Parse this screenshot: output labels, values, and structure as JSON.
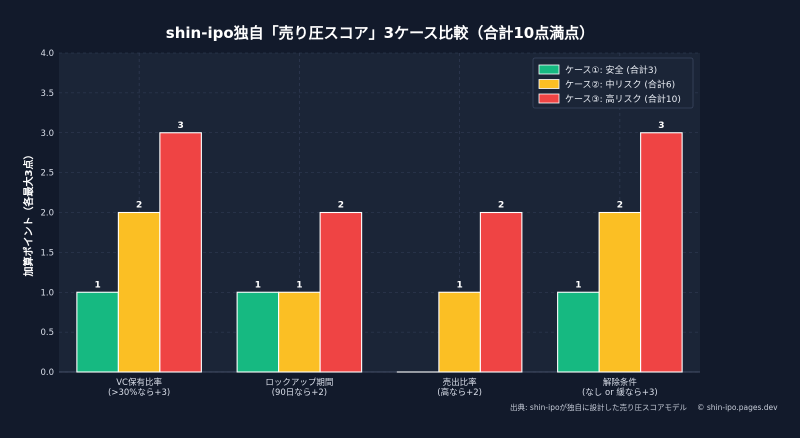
{
  "chart_data": {
    "type": "bar",
    "title": "shin-ipo独自「売り圧スコア」3ケース比較（合計10点満点）",
    "xlabel": "",
    "ylabel": "加算ポイント（各最大3点）",
    "ylim": [
      0,
      4.0
    ],
    "yticks": [
      "0.0",
      "0.5",
      "1.0",
      "1.5",
      "2.0",
      "2.5",
      "3.0",
      "3.5",
      "4.0"
    ],
    "categories": [
      [
        "VC保有比率",
        "(>30%なら+3)"
      ],
      [
        "ロックアップ期間",
        "(90日なら+2)"
      ],
      [
        "売出比率",
        "(高なら+2)"
      ],
      [
        "解除条件",
        "(なし or 緩なら+3)"
      ]
    ],
    "series": [
      {
        "name": "ケース①: 安全 (合計3)",
        "color": "#16b981",
        "values": [
          1,
          1,
          0,
          1
        ]
      },
      {
        "name": "ケース②: 中リスク (合計6)",
        "color": "#fbbf24",
        "values": [
          2,
          1,
          1,
          2
        ]
      },
      {
        "name": "ケース③: 高リスク (合計10)",
        "color": "#ef4444",
        "values": [
          3,
          2,
          2,
          3
        ]
      }
    ],
    "grid": true,
    "legend_position": "top-right",
    "source_note": "出典: shin-ipoが独自に設計した売り圧スコアモデル",
    "watermark": "© shin-ipo.pages.dev"
  },
  "colors": {
    "background": "#121a2b",
    "plot_background": "#1b2537",
    "grid": "#34405a"
  }
}
